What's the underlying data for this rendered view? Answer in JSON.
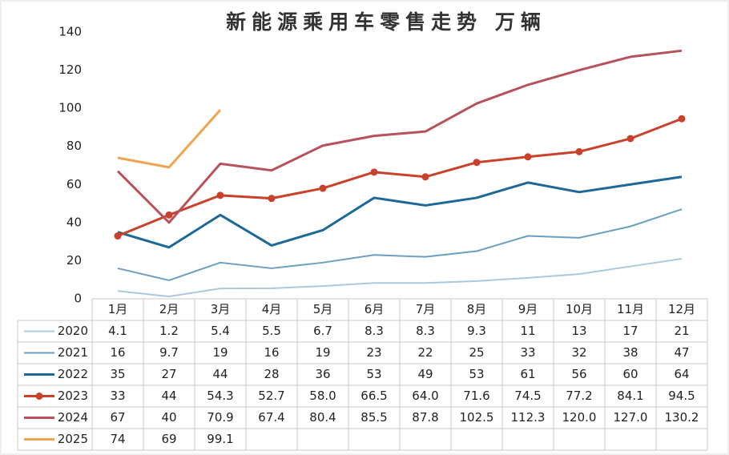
{
  "chart_data": {
    "type": "line",
    "title": "新能源乘用车零售走势  万辆",
    "categories": [
      "1月",
      "2月",
      "3月",
      "4月",
      "5月",
      "6月",
      "7月",
      "8月",
      "9月",
      "10月",
      "11月",
      "12月"
    ],
    "ylim": [
      0,
      140
    ],
    "yticks": [
      0,
      20,
      40,
      60,
      80,
      100,
      120,
      140
    ],
    "grid": false,
    "series": [
      {
        "name": "2020",
        "color": "#a9c9dc",
        "markers": false,
        "values": [
          4.1,
          1.2,
          5.4,
          5.5,
          6.7,
          8.3,
          8.3,
          9.3,
          11,
          13,
          17,
          21
        ]
      },
      {
        "name": "2021",
        "color": "#6b9fc1",
        "markers": false,
        "values": [
          16,
          9.7,
          19,
          16,
          19,
          23,
          22,
          25,
          33,
          32,
          38,
          47
        ]
      },
      {
        "name": "2022",
        "color": "#1d6896",
        "markers": false,
        "values": [
          35,
          27,
          44,
          28,
          36,
          53,
          49,
          53,
          61,
          56,
          60,
          64
        ]
      },
      {
        "name": "2023",
        "color": "#c9412b",
        "markers": true,
        "values": [
          33,
          44,
          54.3,
          52.7,
          58,
          66.5,
          64,
          71.6,
          74.5,
          77.2,
          84.1,
          94.5
        ],
        "value_labels": [
          "33",
          "44",
          "54.3",
          "52.7",
          "58.0",
          "66.5",
          "64.0",
          "71.6",
          "74.5",
          "77.2",
          "84.1",
          "94.5"
        ]
      },
      {
        "name": "2024",
        "color": "#b7515b",
        "markers": false,
        "values": [
          67,
          40,
          70.9,
          67.4,
          80.4,
          85.5,
          87.8,
          102.5,
          112.3,
          120,
          127,
          130.2
        ],
        "value_labels": [
          "67",
          "40",
          "70.9",
          "67.4",
          "80.4",
          "85.5",
          "87.8",
          "102.5",
          "112.3",
          "120.0",
          "127.0",
          "130.2"
        ]
      },
      {
        "name": "2025",
        "color": "#f0a351",
        "markers": false,
        "values": [
          74,
          69,
          99.1,
          null,
          null,
          null,
          null,
          null,
          null,
          null,
          null,
          null
        ]
      }
    ]
  }
}
